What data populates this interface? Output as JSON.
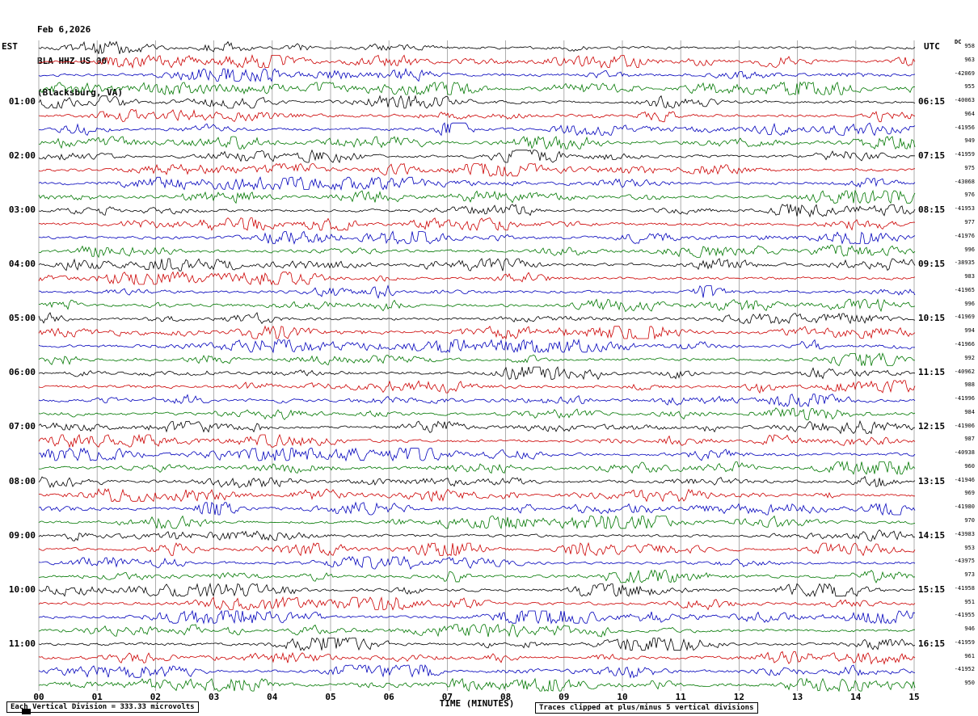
{
  "header": {
    "date": "Feb 6,2026",
    "station": "BLA HHZ US 00",
    "location": "(Blacksburg, VA)"
  },
  "axes": {
    "left_tz": "EST",
    "right_tz": "UTC",
    "dc_label": "DC",
    "x_title": "TIME (MINUTES)",
    "x_ticks": [
      "00",
      "01",
      "02",
      "03",
      "04",
      "05",
      "06",
      "07",
      "08",
      "09",
      "10",
      "11",
      "12",
      "13",
      "14",
      "15"
    ]
  },
  "footer": {
    "left": "Each Vertical Division =  333.33 microvolts",
    "right": "Traces clipped at plus/minus 5 vertical divisions"
  },
  "chart_data": {
    "type": "line",
    "subtype": "helicorder-seismogram",
    "title": "BLA HHZ US 00 (Blacksburg, VA) — Feb 6,2026",
    "xlabel": "TIME (MINUTES)",
    "x_range_minutes": [
      0,
      15
    ],
    "minutes_per_line": 15,
    "lines_per_hour": 4,
    "rows": 48,
    "grid": "vertical gridlines every 1 minute",
    "trace_colors": [
      "#000000",
      "#cc0000",
      "#0000bb",
      "#007700"
    ],
    "waveform_note": "continuous seismic background noise, traces clipped at plus/minus 5 vertical divisions",
    "left_hour_labels": [
      {
        "row": 4,
        "label": "01:00"
      },
      {
        "row": 8,
        "label": "02:00"
      },
      {
        "row": 12,
        "label": "03:00"
      },
      {
        "row": 16,
        "label": "04:00"
      },
      {
        "row": 20,
        "label": "05:00"
      },
      {
        "row": 24,
        "label": "06:00"
      },
      {
        "row": 28,
        "label": "07:00"
      },
      {
        "row": 32,
        "label": "08:00"
      },
      {
        "row": 36,
        "label": "09:00"
      },
      {
        "row": 40,
        "label": "10:00"
      },
      {
        "row": 44,
        "label": "11:00"
      }
    ],
    "right_hour_labels": [
      {
        "row": 4,
        "label": "06:15"
      },
      {
        "row": 8,
        "label": "07:15"
      },
      {
        "row": 12,
        "label": "08:15"
      },
      {
        "row": 16,
        "label": "09:15"
      },
      {
        "row": 20,
        "label": "10:15"
      },
      {
        "row": 24,
        "label": "11:15"
      },
      {
        "row": 28,
        "label": "12:15"
      },
      {
        "row": 32,
        "label": "13:15"
      },
      {
        "row": 36,
        "label": "14:15"
      },
      {
        "row": 40,
        "label": "15:15"
      },
      {
        "row": 44,
        "label": "16:15"
      }
    ],
    "dc_values": [
      958,
      963,
      -42069,
      955,
      -40063,
      964,
      -41956,
      949,
      -41959,
      975,
      -43068,
      976,
      -41953,
      977,
      -41976,
      996,
      -38935,
      983,
      -41965,
      996,
      -41969,
      994,
      -41966,
      992,
      -40962,
      988,
      -41996,
      984,
      -41906,
      987,
      -40938,
      960,
      -41946,
      969,
      -41980,
      970,
      -43983,
      953,
      -43975,
      973,
      -41958,
      951,
      -41955,
      946,
      -41959,
      961,
      -41952,
      950
    ]
  }
}
